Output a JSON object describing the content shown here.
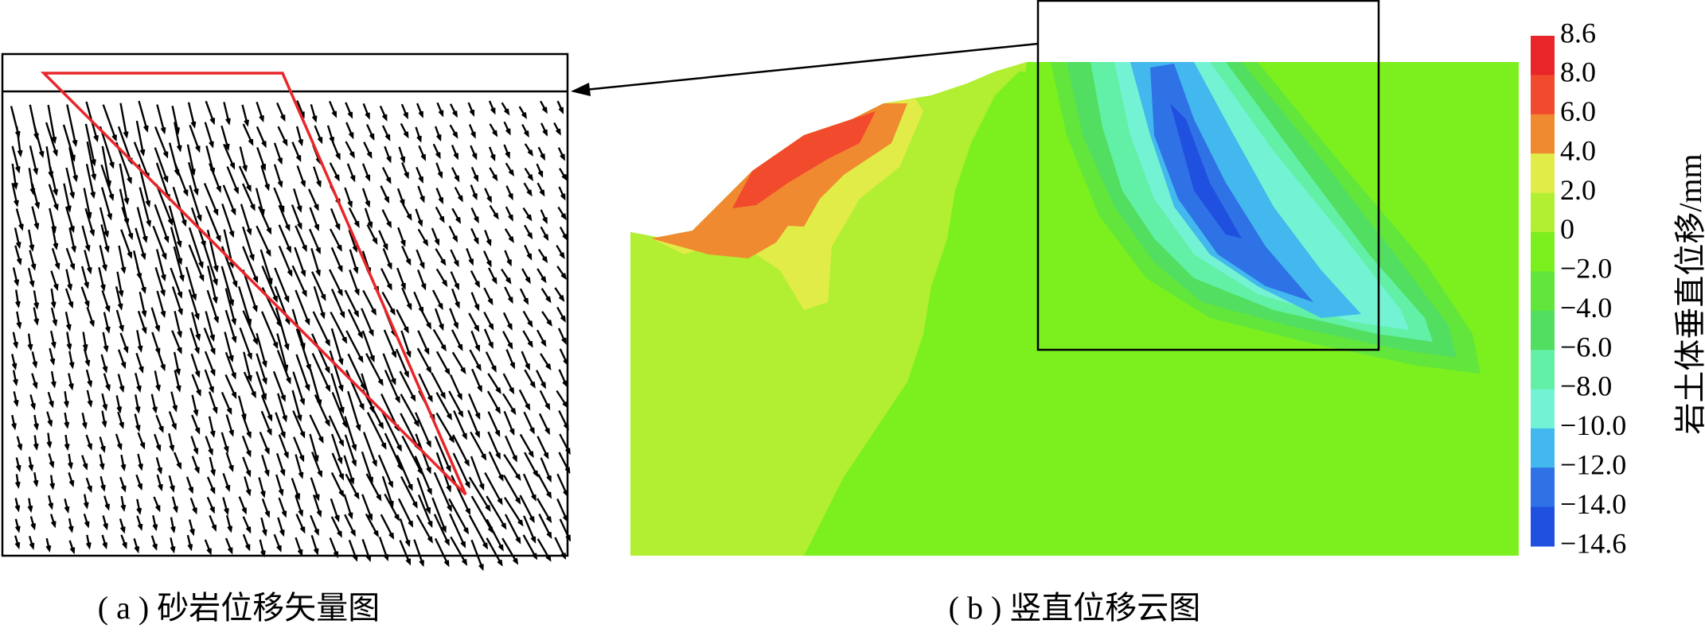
{
  "panel_a": {
    "caption": "( a ) 砂岩位移矢量图"
  },
  "panel_b": {
    "caption": "( b ) 竖直位移云图"
  },
  "colorbar": {
    "title": "岩土体垂直位移/mm",
    "labels": [
      "8.6",
      "8.0",
      "6.0",
      "4.0",
      "2.0",
      "0",
      "−2.0",
      "−4.0",
      "−6.0",
      "−8.0",
      "−10.0",
      "−12.0",
      "−14.0",
      "−14.6"
    ],
    "colors": [
      "#e8262a",
      "#f24a2c",
      "#f08a30",
      "#e2ec48",
      "#b2ee32",
      "#7cf01e",
      "#62e63c",
      "#52de60",
      "#62f0a6",
      "#74f2d4",
      "#42b8ee",
      "#2f72e6",
      "#2050e0"
    ]
  }
}
